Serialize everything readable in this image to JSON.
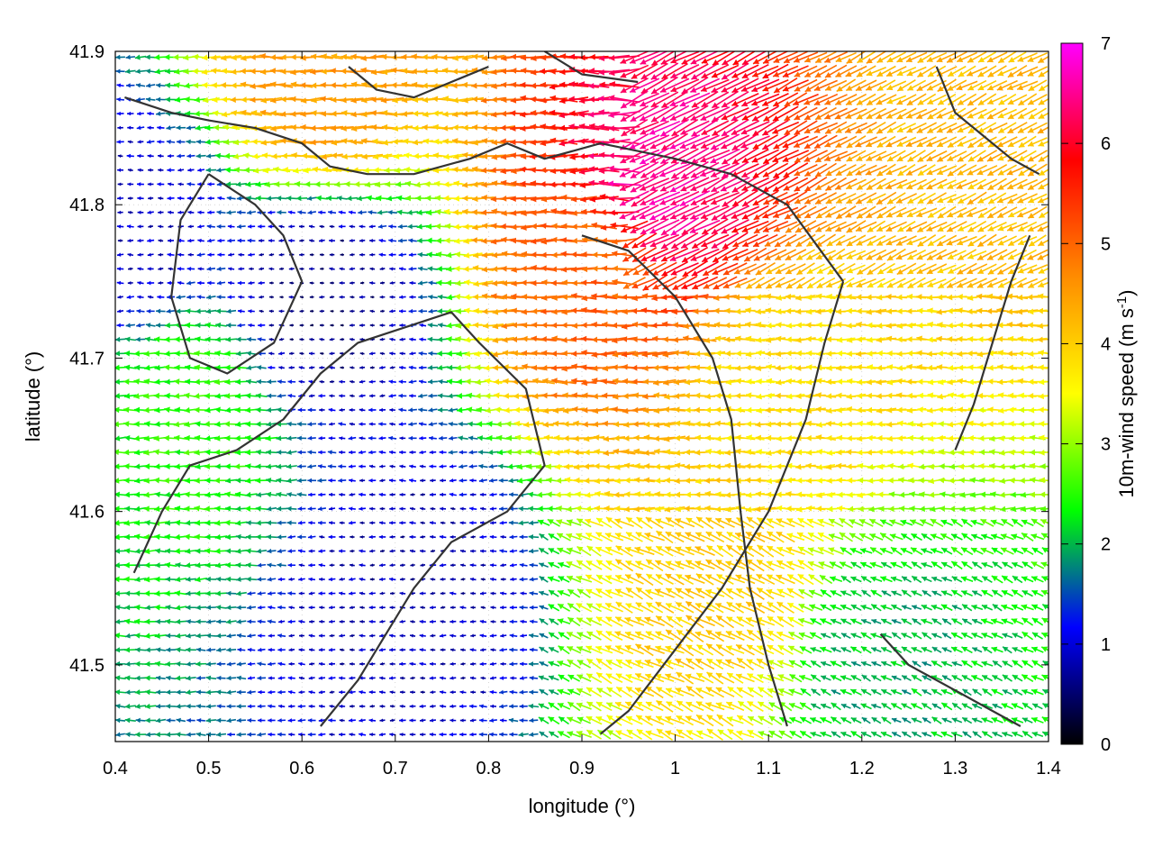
{
  "chart_data": {
    "type": "vector-field",
    "title": "",
    "xlabel": "longitude (°)",
    "ylabel": "latitude (°)",
    "xlim": [
      0.4,
      1.4
    ],
    "ylim": [
      41.45,
      41.9
    ],
    "xticks": [
      "0.4",
      "0.5",
      "0.6",
      "0.7",
      "0.8",
      "0.9",
      "1",
      "1.1",
      "1.2",
      "1.3",
      "1.4"
    ],
    "yticks": [
      "41.5",
      "41.6",
      "41.7",
      "41.8",
      "41.9"
    ],
    "grid": true,
    "colorbar": {
      "title": "10m-wind speed (m s",
      "title_exponent": "-1",
      "title_close": ")",
      "range": [
        0,
        7
      ],
      "ticks": [
        "0",
        "1",
        "2",
        "3",
        "4",
        "5",
        "6",
        "7"
      ],
      "stops": [
        "#000000",
        "#0000ff",
        "#00ff00",
        "#ffff00",
        "#ff8c00",
        "#ff0000",
        "#ff00ff"
      ]
    },
    "wind_field": {
      "base_direction": "westward",
      "speed_regions": [
        {
          "lon": 0.98,
          "lat": 41.81,
          "speed": 6.5
        },
        {
          "lon": 0.92,
          "lat": 41.76,
          "speed": 5.0
        },
        {
          "lon": 0.62,
          "lat": 41.88,
          "speed": 4.5
        },
        {
          "lon": 1.12,
          "lat": 41.68,
          "speed": 3.8
        },
        {
          "lon": 1.05,
          "lat": 41.55,
          "speed": 4.0
        },
        {
          "lon": 1.35,
          "lat": 41.88,
          "speed": 4.2
        },
        {
          "lon": 0.48,
          "lat": 41.67,
          "speed": 2.5
        },
        {
          "lon": 0.62,
          "lat": 41.74,
          "speed": 0.6
        },
        {
          "lon": 0.42,
          "lat": 41.78,
          "speed": 0.9
        },
        {
          "lon": 0.72,
          "lat": 41.55,
          "speed": 0.8
        },
        {
          "lon": 1.22,
          "lat": 41.5,
          "speed": 2.0
        }
      ]
    },
    "contours": [
      [
        [
          0.41,
          41.87
        ],
        [
          0.46,
          41.86
        ],
        [
          0.5,
          41.855
        ],
        [
          0.55,
          41.85
        ],
        [
          0.6,
          41.84
        ],
        [
          0.63,
          41.825
        ],
        [
          0.67,
          41.82
        ],
        [
          0.72,
          41.82
        ],
        [
          0.78,
          41.83
        ],
        [
          0.82,
          41.84
        ],
        [
          0.86,
          41.83
        ],
        [
          0.92,
          41.84
        ],
        [
          1.0,
          41.83
        ],
        [
          1.06,
          41.82
        ],
        [
          1.12,
          41.8
        ],
        [
          1.15,
          41.775
        ],
        [
          1.18,
          41.75
        ]
      ],
      [
        [
          1.18,
          41.75
        ],
        [
          1.16,
          41.71
        ],
        [
          1.14,
          41.66
        ],
        [
          1.1,
          41.6
        ],
        [
          1.05,
          41.55
        ],
        [
          1.0,
          41.51
        ],
        [
          0.95,
          41.47
        ],
        [
          0.92,
          41.455
        ]
      ],
      [
        [
          0.42,
          41.56
        ],
        [
          0.45,
          41.6
        ],
        [
          0.48,
          41.63
        ],
        [
          0.53,
          41.64
        ],
        [
          0.58,
          41.66
        ],
        [
          0.62,
          41.69
        ],
        [
          0.66,
          41.71
        ],
        [
          0.71,
          41.72
        ],
        [
          0.76,
          41.73
        ],
        [
          0.79,
          41.71
        ],
        [
          0.84,
          41.68
        ],
        [
          0.86,
          41.63
        ],
        [
          0.82,
          41.6
        ],
        [
          0.76,
          41.58
        ],
        [
          0.72,
          41.55
        ],
        [
          0.69,
          41.52
        ],
        [
          0.66,
          41.49
        ],
        [
          0.62,
          41.46
        ]
      ],
      [
        [
          0.9,
          41.78
        ],
        [
          0.95,
          41.77
        ],
        [
          1.0,
          41.74
        ],
        [
          1.04,
          41.7
        ],
        [
          1.06,
          41.66
        ],
        [
          1.07,
          41.6
        ],
        [
          1.08,
          41.55
        ],
        [
          1.1,
          41.5
        ],
        [
          1.12,
          41.46
        ]
      ],
      [
        [
          0.5,
          41.82
        ],
        [
          0.55,
          41.8
        ],
        [
          0.58,
          41.78
        ],
        [
          0.6,
          41.75
        ],
        [
          0.57,
          41.71
        ],
        [
          0.52,
          41.69
        ],
        [
          0.48,
          41.7
        ],
        [
          0.46,
          41.74
        ],
        [
          0.47,
          41.79
        ],
        [
          0.5,
          41.82
        ]
      ],
      [
        [
          0.65,
          41.89
        ],
        [
          0.68,
          41.875
        ],
        [
          0.72,
          41.87
        ],
        [
          0.76,
          41.88
        ],
        [
          0.8,
          41.89
        ]
      ],
      [
        [
          0.86,
          41.9
        ],
        [
          0.9,
          41.885
        ],
        [
          0.96,
          41.88
        ]
      ],
      [
        [
          1.22,
          41.52
        ],
        [
          1.25,
          41.5
        ],
        [
          1.28,
          41.49
        ],
        [
          1.31,
          41.48
        ],
        [
          1.34,
          41.47
        ],
        [
          1.37,
          41.46
        ]
      ],
      [
        [
          1.28,
          41.89
        ],
        [
          1.3,
          41.86
        ],
        [
          1.33,
          41.845
        ],
        [
          1.36,
          41.83
        ],
        [
          1.39,
          41.82
        ]
      ],
      [
        [
          1.3,
          41.64
        ],
        [
          1.32,
          41.67
        ],
        [
          1.34,
          41.71
        ],
        [
          1.36,
          41.75
        ],
        [
          1.38,
          41.78
        ]
      ]
    ]
  }
}
